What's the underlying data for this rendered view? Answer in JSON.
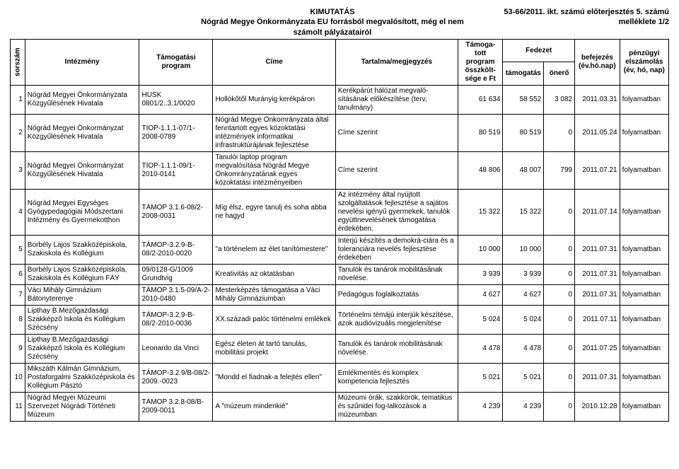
{
  "header": {
    "title_top": "KIMUTATÁS",
    "title_sub": "Nógrád Megye Önkormányzata EU forrásból megvalósított, még el nem számolt pályázatairól",
    "title_right": "53-66/2011. ikt. számú előterjesztés 5. számú melléklete 1/2"
  },
  "columns": {
    "idx": "sorszám",
    "institution": "Intézmény",
    "program": "Támogatási program",
    "title": "Címe",
    "content": "Tartalma/megjegyzés",
    "tprog": "Támoga-\ntott\nprogram\nösszkölt-\nsége e Ft",
    "chapter": "Fedezet",
    "tam": "támogatás",
    "oner": "önerő",
    "completion": "befejezés\n(év.hó.nap)",
    "settlement": "pénzügyi\nelszámolás\n(év, hó, nap)"
  },
  "rows": [
    {
      "idx": "1",
      "inst": "Nógrád Megyei Önkormányzata Közgyűlésének Hivatala",
      "prog": "HUSK 0801/2..3.1/0020",
      "title": "Hollókőtől Murányig kerékpáron",
      "cont": "Kerékpárút hálózat megvaló-sításának előkészítése (terv, tanulmány)",
      "tprog": "61 634",
      "tam": "58 552",
      "oner": "3 082",
      "bef": "2011.03.31",
      "stat": "folyamatban"
    },
    {
      "idx": "2",
      "inst": "Nógrád Megyei Önkormányzat Közgyűlésének Hivatala",
      "prog": "TIOP-1.1.1-07/1-2008-0789",
      "title": "Nógrád Megye Önkomrányzata által fenntartott egyes közoktatási intézmények informatikai infrastruktúrájának fejlesztése",
      "cont": "Címe szerint",
      "tprog": "80 519",
      "tam": "80 519",
      "oner": "0",
      "bef": "2011.05.24",
      "stat": "folyamatban"
    },
    {
      "idx": "3",
      "inst": "Nógrád Megyei Önkormányzat Közgyűlésének Hivatala",
      "prog": "TIOP-1.1.1-09/1-2010-0141",
      "title": "Tanulói laptop program megvalósítása Nógrád Megye Önkomrányzatának egyes közoktatási intézményeiben",
      "cont": "Címe szerint",
      "tprog": "48 806",
      "tam": "48 007",
      "oner": "799",
      "bef": "2011.07.21",
      "stat": "folyamatban"
    },
    {
      "idx": "4",
      "inst": "Nógrád Megyei Egységes Gyógypedagógiai Módszertani Intézmény és Gyermekotthon",
      "prog": "TÁMOP 3.1.6-08/2-2008-0031",
      "title": "Míg élsz, egyre tanulj és soha abba ne hagyd",
      "cont": "Az intézmény által nyújtott szolgáltatások fejlesztése a sajátos nevelési igényű gyermekek, tanulók együttnevelésének támogatása érdekében.",
      "tprog": "15 322",
      "tam": "15 322",
      "oner": "0",
      "bef": "2011.07.14",
      "stat": "folyamatban"
    },
    {
      "idx": "5",
      "inst": "Borbély Lajos Szakközépiskola, Szakiskola és Kollégium",
      "prog": "TÁMOP-3.2.9-B-08/2-2010-0020",
      "title": "\"a történelem az élet tanítómestere\"",
      "cont": "Interjú készítés a demokrá-ciára és a toleranciára nevelés fejlesztése érdekében",
      "tprog": "10 000",
      "tam": "10 000",
      "oner": "0",
      "bef": "2011.07.31",
      "stat": "folyamatban"
    },
    {
      "idx": "6",
      "inst": "Borbély Lajos Szakközépiskola, Szakiskola és Kollégium FÁY",
      "prog": "09/0128-G/1009 Grundtvig",
      "title": "Kreativitás az oktatásban",
      "cont": "Tanulók és tanárok mobilitásának növelése.",
      "tprog": "3 939",
      "tam": "3 939",
      "oner": "0",
      "bef": "2011.07.31",
      "stat": "folyamatban"
    },
    {
      "idx": "7",
      "inst": "Váci Mihály Gimnázium Bátonyterenye",
      "prog": "TÁMOP 3.1.5-09/A-2-2010-0480",
      "title": "Mesterképzés támogatása a Váci Mihály Gimnáziumban",
      "cont": "Pedagógus foglalkoztatás",
      "tprog": "4 627",
      "tam": "4 627",
      "oner": "0",
      "bef": "2011.07.31",
      "stat": "folyamatban"
    },
    {
      "idx": "8",
      "inst": "Lipthay B.Mezőgazdasági Szakképző Iskola és Kollégium Szécsény",
      "prog": "TÁMOP-3.2.9-B-08/2-2010-0036",
      "title": "XX.századi palóc történelmi emlékek",
      "cont": "Történelmi témájú interjúk készítése, azok audióvizuális megjelenítése",
      "tprog": "5 024",
      "tam": "5 024",
      "oner": "0",
      "bef": "2011.07.11",
      "stat": "folyamatban"
    },
    {
      "idx": "9",
      "inst": "Lipthay B.Mezőgazdasági Szakképző Iskola és Kollégium Szécsény",
      "prog": "Leonardo da Vinci",
      "title": "Egész életen át tartó tanulás, mobilitási projekt",
      "cont": "Tanulók és tanárok mobilitásának növelése.",
      "tprog": "4 478",
      "tam": "4 478",
      "oner": "0",
      "bef": "2011.07.25",
      "stat": "folyamatban"
    },
    {
      "idx": "10",
      "inst": "Mikszáth Kálmán Gimnázium, Postaforgalmi Szakközépiskola és Kollégium Pásztó",
      "prog": "TÁMOP-3.2.9/B-08/2-2009.-0023",
      "title": "\"Mondd el fiadnak-a felejtés ellen\"",
      "cont": "Emlékmentés és komplex kompetencia fejlesztés",
      "tprog": "5 021",
      "tam": "5 021",
      "oner": "0",
      "bef": "2011.07.31",
      "stat": "folyamatban"
    },
    {
      "idx": "11",
      "inst": "Nógrád Megyei Múzeumi Szervezet Nógrádi Történeti Múzeum",
      "prog": "TÁMOP 3.2.8-08/B-2009-0011",
      "title": "A \"múzeum mindenkié\"",
      "cont": "Múzeumi órák, szakkörök, tematikus és szűnidei fog-lalkozások a múzeumban",
      "tprog": "4 239",
      "tam": "4 239",
      "oner": "0",
      "bef": "2010.12.28",
      "stat": "folyamatban"
    }
  ]
}
